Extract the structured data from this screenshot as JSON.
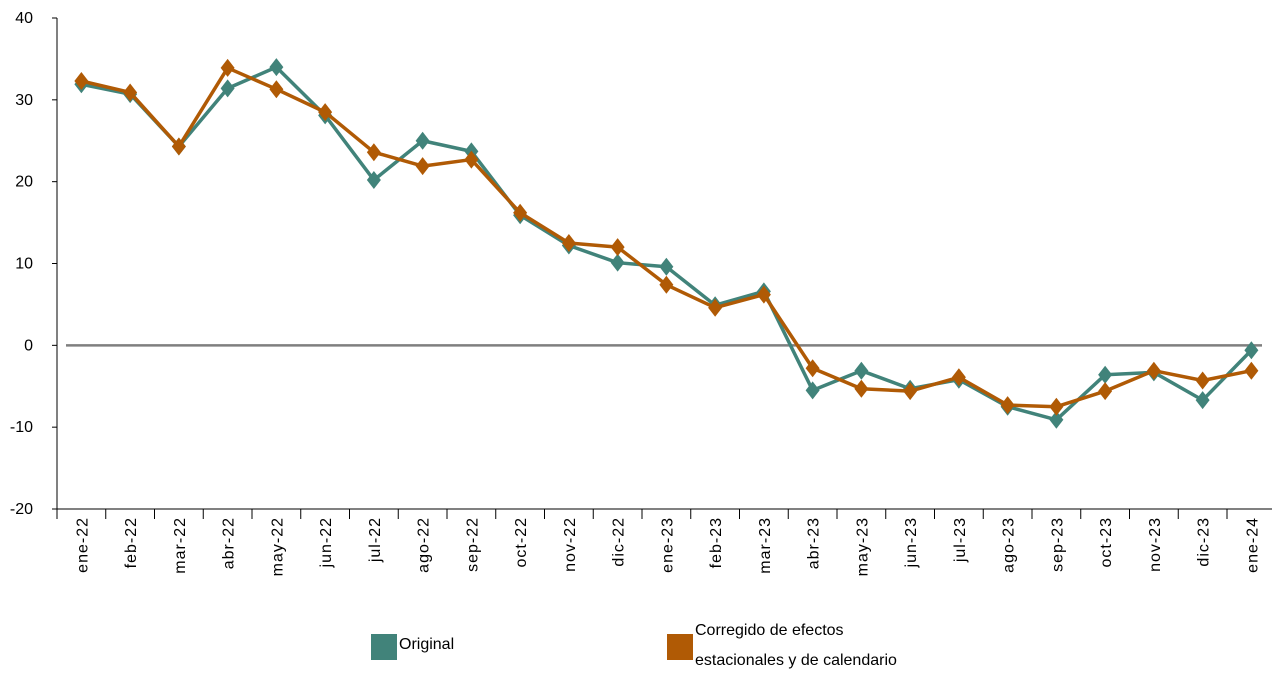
{
  "chart_data": {
    "type": "line",
    "categories": [
      "ene-22",
      "feb-22",
      "mar-22",
      "abr-22",
      "may-22",
      "jun-22",
      "jul-22",
      "ago-22",
      "sep-22",
      "oct-22",
      "nov-22",
      "dic-22",
      "ene-23",
      "feb-23",
      "mar-23",
      "abr-23",
      "may-23",
      "jun-23",
      "jul-23",
      "ago-23",
      "sep-23",
      "oct-23",
      "nov-23",
      "dic-23",
      "ene-24"
    ],
    "ylim": [
      -20,
      40
    ],
    "yticks": [
      -20,
      -10,
      0,
      10,
      20,
      30,
      40
    ],
    "ytick_labels": [
      "-20",
      "-10",
      "0",
      "10",
      "20",
      "30",
      "40"
    ],
    "series": [
      {
        "name": "Original",
        "color": "#41837A",
        "values": [
          31.9,
          30.7,
          24.3,
          31.4,
          34.0,
          28.1,
          20.2,
          25.0,
          23.7,
          15.9,
          12.2,
          10.1,
          9.6,
          4.9,
          6.6,
          -5.5,
          -3.1,
          -5.3,
          -4.2,
          -7.5,
          -9.1,
          -3.6,
          -3.3,
          -6.7,
          -0.6
        ]
      },
      {
        "name": "Corregido de efectos estacionales y de calendario",
        "label_lines": [
          "Corregido de efectos",
          "estacionales y de calendario"
        ],
        "color": "#B05A05",
        "values": [
          32.3,
          30.9,
          24.3,
          33.9,
          31.3,
          28.5,
          23.6,
          21.9,
          22.7,
          16.2,
          12.5,
          12.0,
          7.4,
          4.6,
          6.2,
          -2.8,
          -5.3,
          -5.6,
          -3.9,
          -7.3,
          -7.5,
          -5.6,
          -3.1,
          -4.3,
          -3.1
        ]
      }
    ],
    "zero_line_color": "#7F7F7F",
    "marker": "diamond",
    "grid": false,
    "legend_position": "bottom"
  }
}
